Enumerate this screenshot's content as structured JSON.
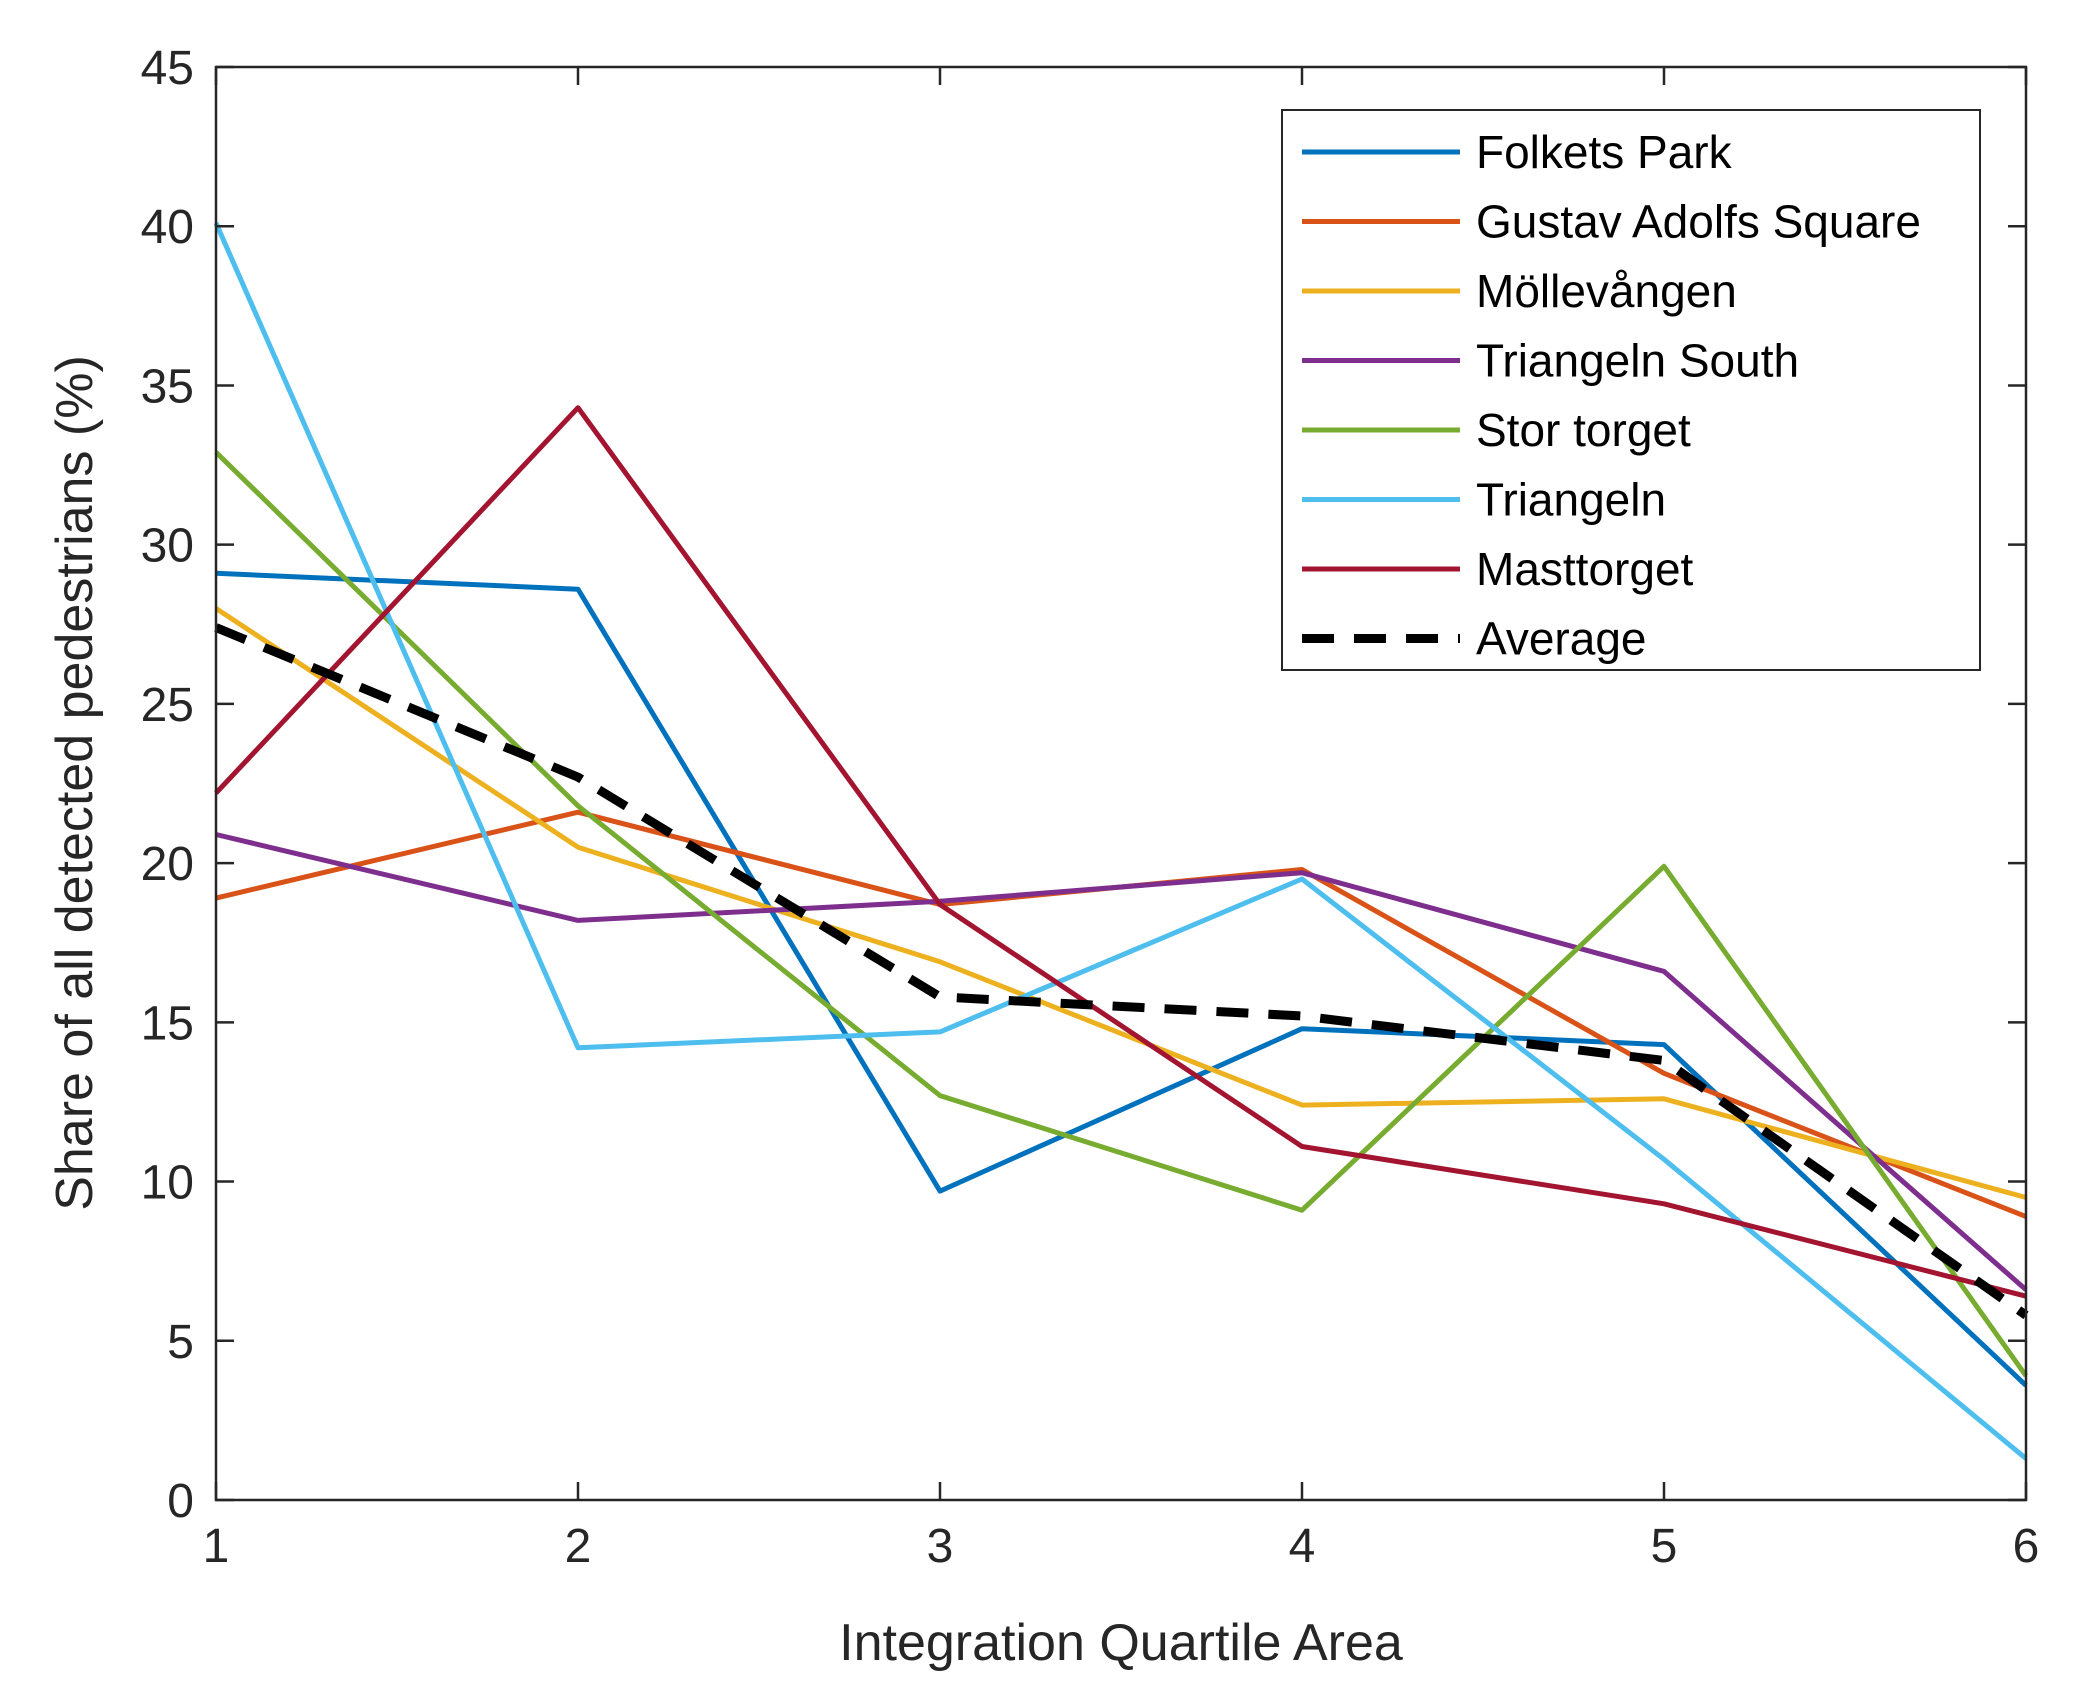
{
  "chart_data": {
    "type": "line",
    "title": "",
    "xlabel": "Integration Quartile Area",
    "ylabel": "Share of all detected pedestrians (%)",
    "x": [
      1,
      2,
      3,
      4,
      5,
      6
    ],
    "xlim": [
      1,
      6
    ],
    "ylim": [
      0,
      45
    ],
    "xticks": [
      "1",
      "2",
      "3",
      "4",
      "5",
      "6"
    ],
    "yticks": [
      "0",
      "5",
      "10",
      "15",
      "20",
      "25",
      "30",
      "35",
      "40",
      "45"
    ],
    "grid": false,
    "legend_position": "top-right",
    "series": [
      {
        "name": "Folkets Park",
        "color": "#0072BD",
        "dash": "solid",
        "values": [
          29.1,
          28.6,
          9.7,
          14.8,
          14.3,
          3.6
        ]
      },
      {
        "name": "Gustav Adolfs Square",
        "color": "#D95319",
        "dash": "solid",
        "values": [
          18.9,
          21.6,
          18.7,
          19.8,
          13.4,
          8.9
        ]
      },
      {
        "name": "Möllevången",
        "color": "#EDB120",
        "dash": "solid",
        "values": [
          28.0,
          20.5,
          16.9,
          12.4,
          12.6,
          9.5
        ]
      },
      {
        "name": "Triangeln South",
        "color": "#7E2F8E",
        "dash": "solid",
        "values": [
          20.9,
          18.2,
          18.8,
          19.7,
          16.6,
          6.6
        ]
      },
      {
        "name": "Stor torget",
        "color": "#77AC30",
        "dash": "solid",
        "values": [
          32.9,
          21.8,
          12.7,
          9.1,
          19.9,
          3.9
        ]
      },
      {
        "name": "Triangeln",
        "color": "#4DBEEE",
        "dash": "solid",
        "values": [
          40.1,
          14.2,
          14.7,
          19.5,
          10.7,
          1.3
        ]
      },
      {
        "name": "Masttorget",
        "color": "#A2142F",
        "dash": "solid",
        "values": [
          22.2,
          34.3,
          18.7,
          11.1,
          9.3,
          6.4
        ]
      },
      {
        "name": "Average",
        "color": "#000000",
        "dash": "dashed",
        "values": [
          27.4,
          22.7,
          15.8,
          15.2,
          13.8,
          5.8
        ]
      }
    ]
  }
}
